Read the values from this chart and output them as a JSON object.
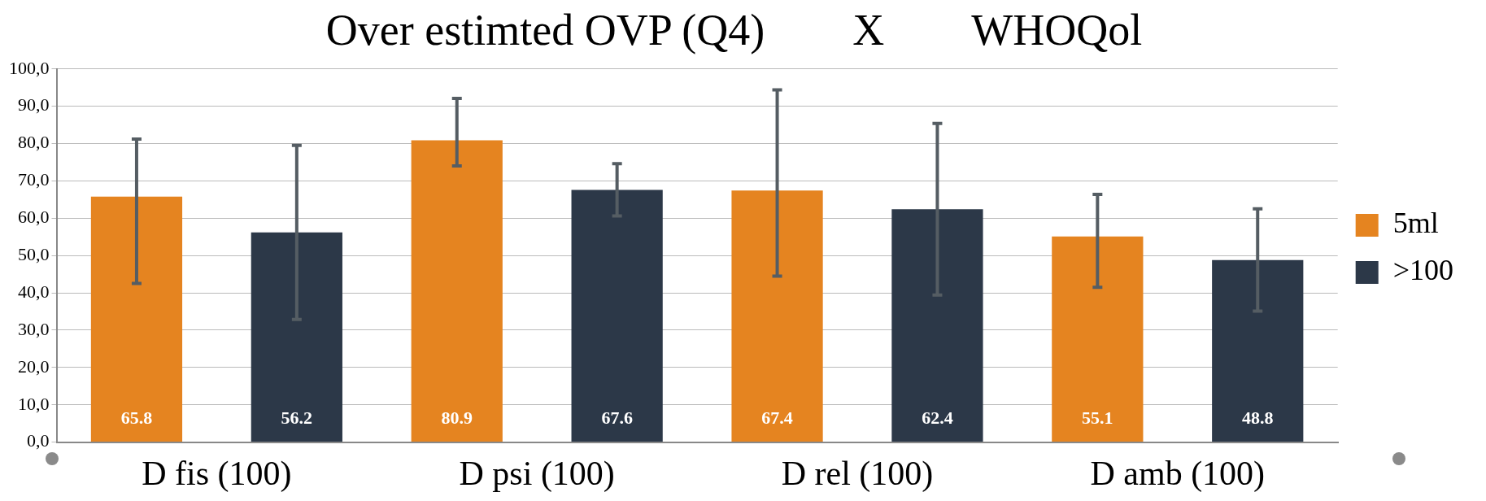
{
  "chart_data": {
    "type": "bar",
    "title": "Over estimted OVP (Q4)        X        WHOQol",
    "categories": [
      "D fis (100)",
      "D psi (100)",
      "D rel (100)",
      "D amb (100)"
    ],
    "series": [
      {
        "name": "5ml",
        "color": "#e58420",
        "values": [
          65.8,
          80.9,
          67.4,
          55.1
        ],
        "errors": [
          [
            42.5,
            81.2
          ],
          [
            74.0,
            92.1
          ],
          [
            44.5,
            94.4
          ],
          [
            41.5,
            66.4
          ]
        ]
      },
      {
        "name": ">100",
        "color": "#2c3848",
        "values": [
          56.2,
          67.6,
          62.4,
          48.8
        ],
        "errors": [
          [
            32.9,
            79.5
          ],
          [
            60.6,
            74.6
          ],
          [
            39.4,
            85.4
          ],
          [
            35.1,
            62.5
          ]
        ]
      }
    ],
    "ylim": [
      0,
      100
    ],
    "yticks": [
      {
        "value": 0,
        "label": "0,0"
      },
      {
        "value": 10,
        "label": "10,0"
      },
      {
        "value": 20,
        "label": "20,0"
      },
      {
        "value": 30,
        "label": "30,0"
      },
      {
        "value": 40,
        "label": "40,0"
      },
      {
        "value": 50,
        "label": "50,0"
      },
      {
        "value": 60,
        "label": "60,0"
      },
      {
        "value": 70,
        "label": "70,0"
      },
      {
        "value": 80,
        "label": "80,0"
      },
      {
        "value": 90,
        "label": "90,0"
      },
      {
        "value": 100,
        "label": "100,0"
      }
    ],
    "grid": "y",
    "legend": "right",
    "data_labels": true
  }
}
